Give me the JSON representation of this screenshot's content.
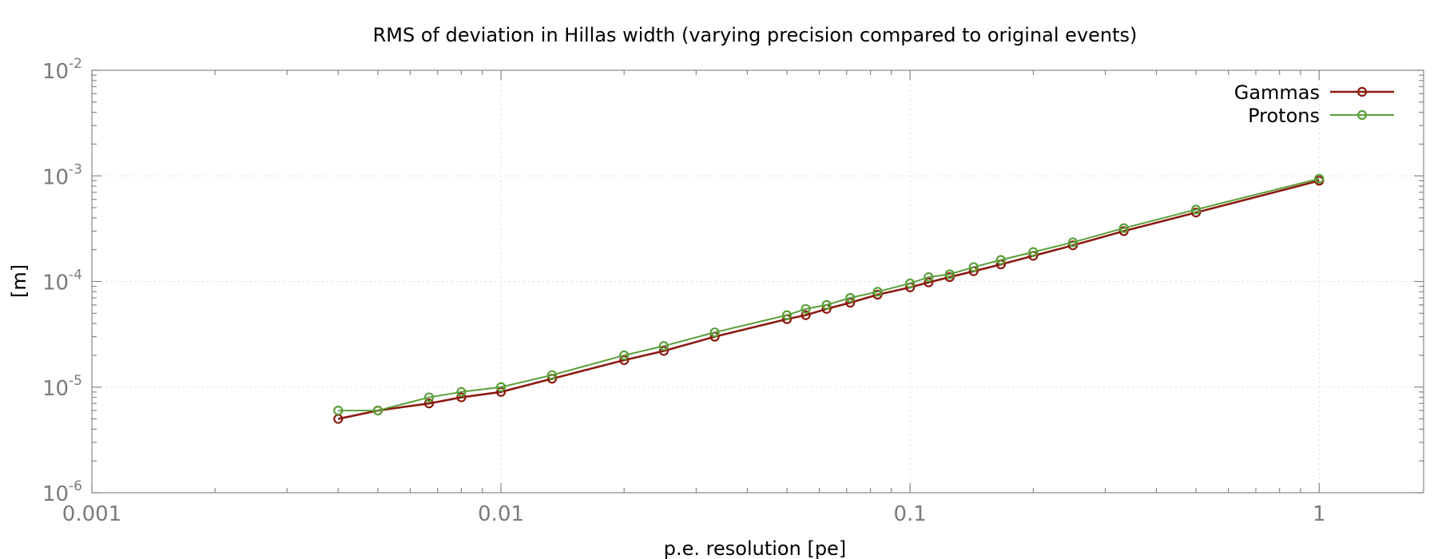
{
  "chart_data": {
    "type": "line",
    "title": "RMS of deviation in Hillas width (varying precision compared to original events)",
    "xlabel": "p.e. resolution [pe]",
    "ylabel": "[m]",
    "xscale": "log",
    "yscale": "log",
    "xlim": [
      0.001,
      1.8
    ],
    "ylim": [
      1e-06,
      0.01
    ],
    "x_ticks": [
      {
        "value": 0.001,
        "label": "0.001"
      },
      {
        "value": 0.01,
        "label": "0.01"
      },
      {
        "value": 0.1,
        "label": "0.1"
      },
      {
        "value": 1,
        "label": "1"
      }
    ],
    "y_ticks": [
      {
        "value": 1e-06,
        "base": "10",
        "exp": "-6"
      },
      {
        "value": 1e-05,
        "base": "10",
        "exp": "-5"
      },
      {
        "value": 0.0001,
        "base": "10",
        "exp": "-4"
      },
      {
        "value": 0.001,
        "base": "10",
        "exp": "-3"
      },
      {
        "value": 0.01,
        "base": "10",
        "exp": "-2"
      }
    ],
    "grid": true,
    "legend_position": "top-right",
    "series": [
      {
        "name": "Gammas",
        "color": "#8b1a10",
        "points": [
          [
            0.004,
            5e-06
          ],
          [
            0.005,
            6e-06
          ],
          [
            0.00667,
            7e-06
          ],
          [
            0.008,
            8e-06
          ],
          [
            0.01,
            9e-06
          ],
          [
            0.01333,
            1.2e-05
          ],
          [
            0.02,
            1.8e-05
          ],
          [
            0.025,
            2.2e-05
          ],
          [
            0.0333,
            3e-05
          ],
          [
            0.05,
            4.4e-05
          ],
          [
            0.0556,
            4.8e-05
          ],
          [
            0.0625,
            5.5e-05
          ],
          [
            0.0714,
            6.3e-05
          ],
          [
            0.0833,
            7.5e-05
          ],
          [
            0.1,
            8.8e-05
          ],
          [
            0.111,
            9.8e-05
          ],
          [
            0.125,
            0.00011
          ],
          [
            0.143,
            0.000125
          ],
          [
            0.1667,
            0.000145
          ],
          [
            0.2,
            0.000175
          ],
          [
            0.25,
            0.00022
          ],
          [
            0.333,
            0.0003
          ],
          [
            0.5,
            0.00045
          ],
          [
            1.0,
            0.0009
          ]
        ]
      },
      {
        "name": "Protons",
        "color": "#5b9e3a",
        "points": [
          [
            0.004,
            6e-06
          ],
          [
            0.005,
            6e-06
          ],
          [
            0.00667,
            8e-06
          ],
          [
            0.008,
            9e-06
          ],
          [
            0.01,
            1e-05
          ],
          [
            0.01333,
            1.3e-05
          ],
          [
            0.02,
            2e-05
          ],
          [
            0.025,
            2.45e-05
          ],
          [
            0.0333,
            3.3e-05
          ],
          [
            0.05,
            4.8e-05
          ],
          [
            0.0556,
            5.5e-05
          ],
          [
            0.0625,
            6e-05
          ],
          [
            0.0714,
            7e-05
          ],
          [
            0.0833,
            8e-05
          ],
          [
            0.1,
            9.6e-05
          ],
          [
            0.111,
            0.00011
          ],
          [
            0.125,
            0.000117
          ],
          [
            0.143,
            0.000137
          ],
          [
            0.1667,
            0.00016
          ],
          [
            0.2,
            0.00019
          ],
          [
            0.25,
            0.000235
          ],
          [
            0.333,
            0.00032
          ],
          [
            0.5,
            0.00048
          ],
          [
            1.0,
            0.00094
          ]
        ]
      }
    ]
  }
}
